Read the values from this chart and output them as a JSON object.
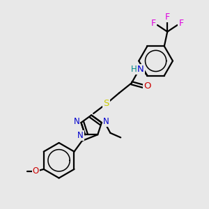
{
  "bg_color": "#e8e8e8",
  "atom_colors": {
    "C": "#000000",
    "N": "#0000cc",
    "O": "#cc0000",
    "S": "#cccc00",
    "F": "#dd00dd",
    "H": "#008888"
  },
  "bond_color": "#000000",
  "bond_width": 1.6,
  "font_size": 8.5,
  "fig_size": [
    3.0,
    3.0
  ],
  "dpi": 100,
  "xlim": [
    0,
    10
  ],
  "ylim": [
    0,
    10
  ]
}
